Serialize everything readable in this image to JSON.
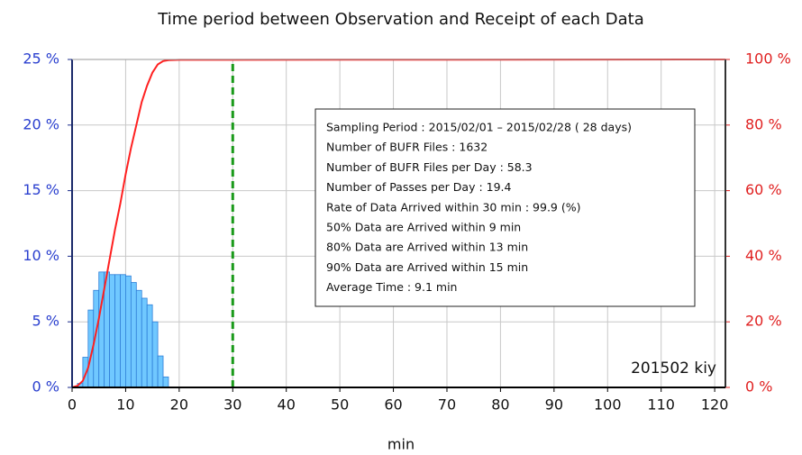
{
  "chart_data": {
    "type": "histogram",
    "title": "Time period between Observation and Receipt of each Data",
    "xlabel": "min",
    "bins": [
      1,
      2,
      3,
      4,
      5,
      6,
      7,
      8,
      9,
      10,
      11,
      12,
      13,
      14,
      15,
      16,
      17,
      18
    ],
    "values": [
      0.3,
      2.3,
      5.9,
      7.4,
      8.8,
      8.8,
      8.6,
      8.6,
      8.6,
      8.5,
      8.0,
      7.4,
      6.8,
      6.3,
      5.0,
      2.4,
      0.8
    ],
    "color": "#70c8ff",
    "edge_color": "#2f7fd8",
    "cumulative": {
      "axis": "y2",
      "color": "#ff2020",
      "x": [
        0,
        1,
        2,
        3,
        4,
        5,
        6,
        7,
        8,
        9,
        10,
        11,
        12,
        13,
        14,
        15,
        16,
        17,
        18,
        20,
        30,
        122
      ],
      "values": [
        0,
        0.5,
        2,
        6,
        13,
        21,
        30,
        39,
        48,
        56,
        65,
        73,
        80,
        87,
        92,
        96,
        98.5,
        99.5,
        99.8,
        99.9,
        99.9,
        100
      ]
    },
    "vline": {
      "x": 30,
      "color": "#1a9a1a"
    },
    "xlim": [
      0,
      122
    ],
    "xticks": [
      0,
      10,
      20,
      30,
      40,
      50,
      60,
      70,
      80,
      90,
      100,
      110,
      120
    ],
    "ylim": [
      0,
      25
    ],
    "yticks": [
      {
        "value": 0,
        "label": "0 %"
      },
      {
        "value": 5,
        "label": "5 %"
      },
      {
        "value": 10,
        "label": "10 %"
      },
      {
        "value": 15,
        "label": "15 %"
      },
      {
        "value": 20,
        "label": "20 %"
      },
      {
        "value": 25,
        "label": "25 %"
      }
    ],
    "y2lim": [
      0,
      100
    ],
    "y2ticks": [
      {
        "value": 0,
        "label": "0 %"
      },
      {
        "value": 20,
        "label": "20 %"
      },
      {
        "value": 40,
        "label": "40 %"
      },
      {
        "value": 60,
        "label": "60 %"
      },
      {
        "value": 80,
        "label": "80 %"
      },
      {
        "value": 100,
        "label": "100 %"
      }
    ],
    "grid": true,
    "info_box": [
      "Sampling Period : 2015/02/01 – 2015/02/28 ( 28 days)",
      "Number of BUFR Files : 1632",
      "Number of BUFR Files per Day : 58.3",
      "Number of Passes per Day : 19.4",
      "Rate of Data Arrived within 30 min : 99.9 (%)",
      "50% Data are Arrived within 9 min",
      "80% Data are Arrived within 13 min",
      "90% Data are Arrived within 15 min",
      "Average Time : 9.1 min"
    ],
    "annotation": "201502 kiy"
  }
}
